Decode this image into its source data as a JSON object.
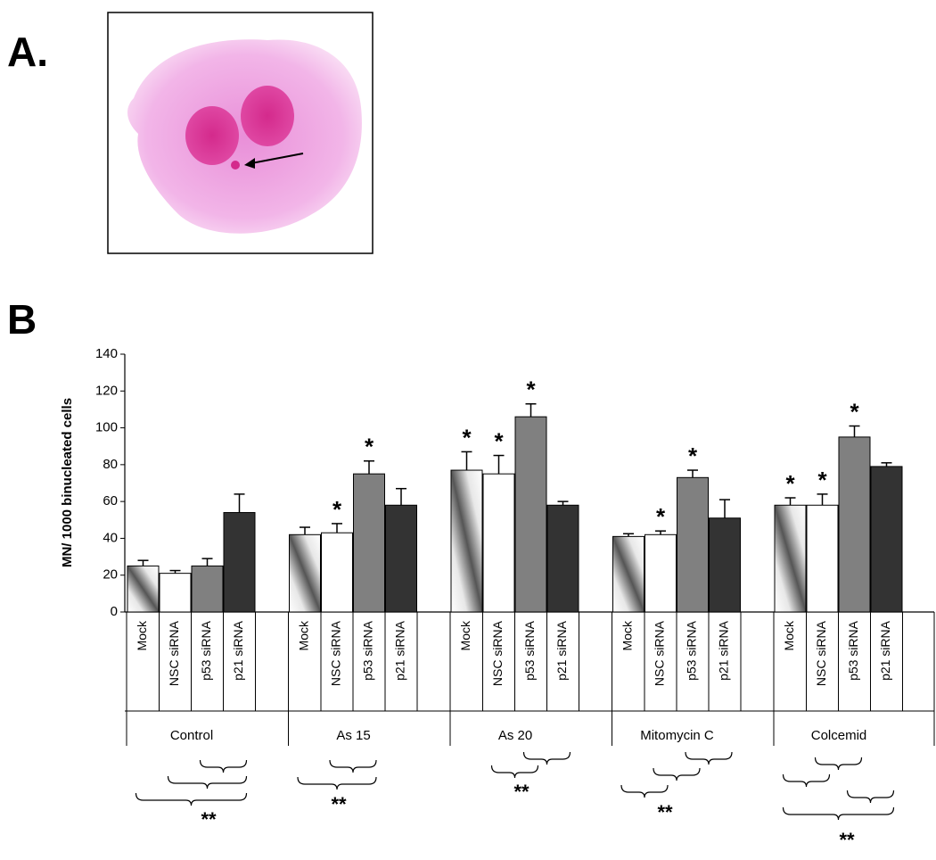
{
  "panel_a": {
    "label": "A."
  },
  "chart_data": {
    "type": "bar",
    "panel_label": "B",
    "y_label": "MN/ 1000 binucleated cells",
    "categories": [
      "Control",
      "As 15",
      "As 20",
      "Mitomycin C",
      "Colcemid"
    ],
    "series": [
      {
        "name": "Mock",
        "color": "#8c8c8c",
        "values": [
          25,
          42,
          77,
          41,
          58
        ],
        "errors": [
          3,
          4,
          10,
          1.5,
          4
        ],
        "significance": [
          null,
          null,
          "*",
          null,
          "*"
        ]
      },
      {
        "name": "NSC siRNA",
        "color": "#ffffff",
        "values": [
          21,
          43,
          75,
          42,
          58
        ],
        "errors": [
          1.5,
          5,
          10,
          2,
          6
        ],
        "significance": [
          null,
          "*",
          "*",
          "*",
          "*"
        ]
      },
      {
        "name": "p53 siRNA",
        "color": "#808080",
        "values": [
          25,
          75,
          106,
          73,
          95
        ],
        "errors": [
          4,
          7,
          7,
          4,
          6
        ],
        "significance": [
          null,
          "*",
          "*",
          "*",
          "*"
        ]
      },
      {
        "name": "p21 siRNA",
        "color": "#333333",
        "values": [
          54,
          58,
          58,
          51,
          79
        ],
        "errors": [
          10,
          9,
          2,
          10,
          2
        ],
        "significance": [
          null,
          null,
          null,
          null,
          null
        ]
      }
    ],
    "comparison_labels": [
      "**",
      "**",
      "**",
      "**",
      "**"
    ],
    "ylim": [
      0,
      140
    ],
    "yticks": [
      0,
      20,
      40,
      60,
      80,
      100,
      120,
      140
    ]
  }
}
